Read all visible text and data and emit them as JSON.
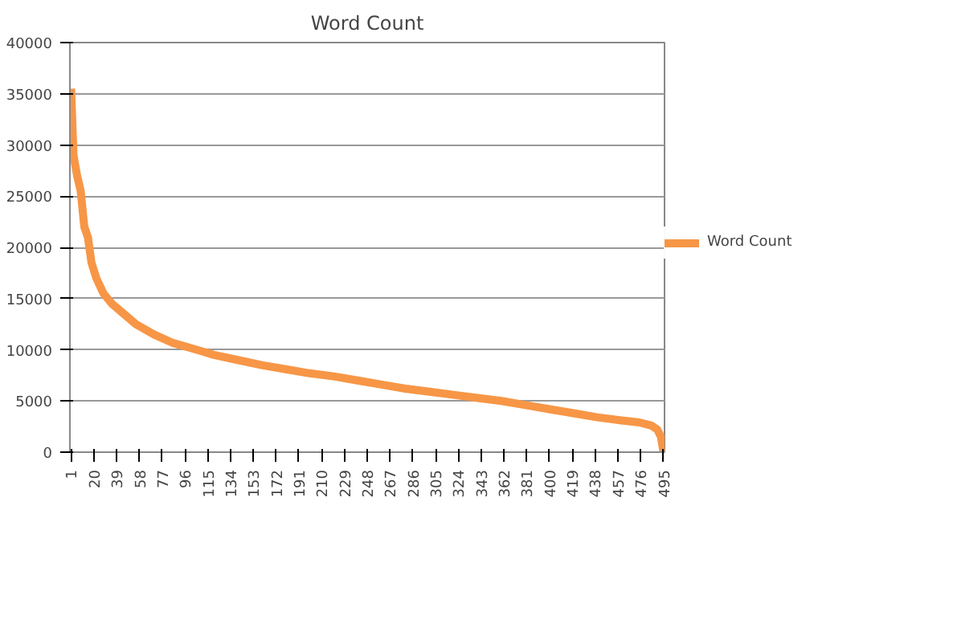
{
  "chart_data": {
    "type": "line",
    "title": "Word Count",
    "x": [
      1,
      3,
      6,
      9,
      12,
      15,
      18,
      22,
      28,
      35,
      45,
      55,
      70,
      85,
      100,
      120,
      140,
      160,
      180,
      200,
      220,
      240,
      260,
      280,
      300,
      320,
      340,
      360,
      380,
      400,
      420,
      440,
      460,
      475,
      485,
      490,
      493,
      495
    ],
    "series": [
      {
        "name": "Word Count",
        "color": "#f79646",
        "values": [
          35500,
          29000,
          27000,
          25500,
          22000,
          21000,
          18500,
          17000,
          15500,
          14500,
          13500,
          12500,
          11500,
          10700,
          10200,
          9500,
          9000,
          8500,
          8100,
          7700,
          7400,
          7000,
          6600,
          6200,
          5900,
          5600,
          5300,
          5000,
          4600,
          4200,
          3800,
          3400,
          3100,
          2900,
          2600,
          2200,
          1500,
          100
        ]
      }
    ],
    "xlim": [
      0,
      496
    ],
    "xticks": [
      1,
      20,
      39,
      58,
      77,
      96,
      115,
      134,
      153,
      172,
      191,
      210,
      229,
      248,
      267,
      286,
      305,
      324,
      343,
      362,
      381,
      400,
      419,
      438,
      457,
      476,
      495
    ],
    "ylim": [
      0,
      40000
    ],
    "yticks": [
      0,
      5000,
      10000,
      15000,
      20000,
      25000,
      30000,
      35000,
      40000
    ],
    "grid": "y",
    "legend": "right",
    "marker": "none",
    "line_style": "solid"
  }
}
